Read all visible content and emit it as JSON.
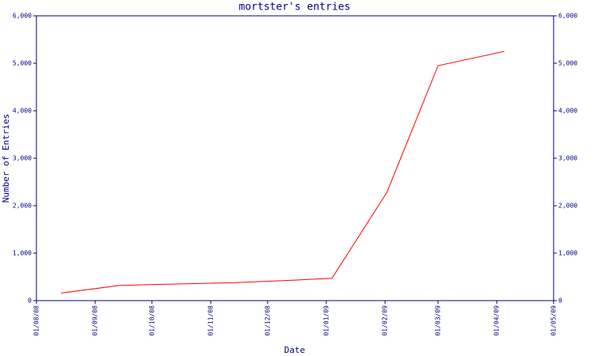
{
  "chart_data": {
    "type": "line",
    "title": "mortster's entries",
    "x_label": "Date",
    "y_label": "Number of Entries",
    "x": [
      "14/08/08",
      "14/09/08",
      "14/10/08",
      "14/11/08",
      "14/12/08",
      "04/01/09",
      "02/02/09",
      "01/03/09",
      "05/04/09"
    ],
    "series": [
      {
        "name": "entries",
        "color": "#ff0000",
        "values": [
          160,
          320,
          350,
          380,
          430,
          470,
          2280,
          4950,
          5250
        ]
      }
    ],
    "xlim": [
      "01/08/08",
      "01/05/09"
    ],
    "xticks": [
      "01/08/08",
      "01/09/08",
      "01/10/08",
      "01/11/08",
      "01/12/08",
      "01/01/09",
      "01/02/09",
      "01/03/09",
      "01/04/09",
      "01/05/09"
    ],
    "ylim": [
      0,
      6000
    ],
    "yticks": [
      0,
      {
        "value": 1000,
        "label": "1,000"
      },
      {
        "value": 2000,
        "label": "2,000"
      },
      {
        "value": 3000,
        "label": "3,000"
      },
      {
        "value": 4000,
        "label": "4,000"
      },
      {
        "value": 5000,
        "label": "5,000"
      },
      {
        "value": 6000,
        "label": "6,000"
      }
    ],
    "mirror_y_axis": true,
    "grid": false
  }
}
